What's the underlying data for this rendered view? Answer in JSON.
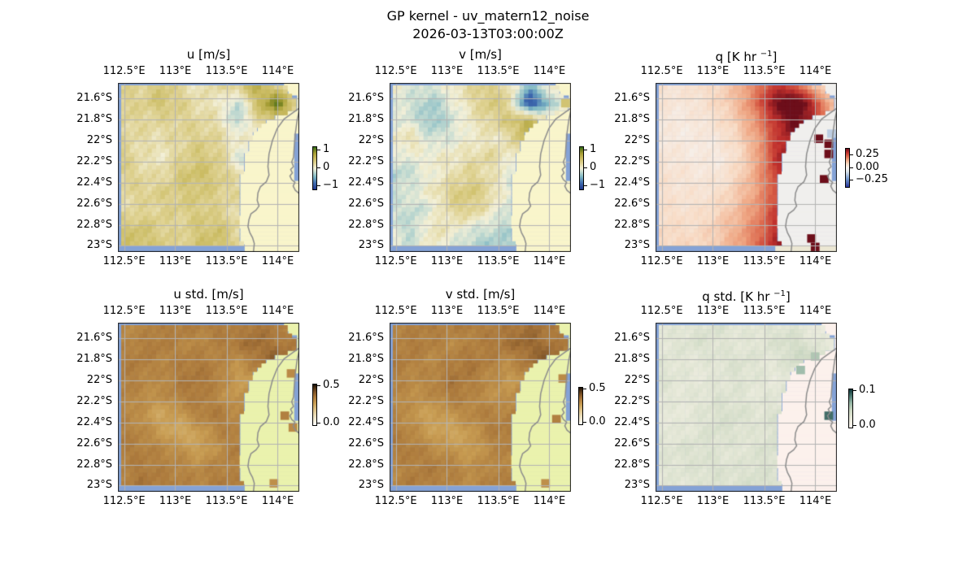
{
  "figure": {
    "suptitle_line1": "GP kernel - uv_matern12_noise",
    "suptitle_line2": "2026-03-13T03:00:00Z"
  },
  "colors": {
    "background": "#ffffff",
    "ocean": "#84a2d6",
    "coastline": "#8c8c8c",
    "gridline": "#b3b3b3",
    "frame": "#1a1a1a",
    "text": "#000000"
  },
  "colormaps": {
    "uv": [
      [
        0,
        "#20368c"
      ],
      [
        0.15,
        "#3f6cb0"
      ],
      [
        0.3,
        "#7fb8c4"
      ],
      [
        0.42,
        "#c8ddd2"
      ],
      [
        0.5,
        "#f3f0d8"
      ],
      [
        0.62,
        "#e0d394"
      ],
      [
        0.74,
        "#c9ba5e"
      ],
      [
        0.85,
        "#a89f36"
      ],
      [
        0.93,
        "#70801f"
      ],
      [
        1,
        "#2f6e1a"
      ]
    ],
    "q": [
      [
        0,
        "#27349a"
      ],
      [
        0.2,
        "#7095cc"
      ],
      [
        0.4,
        "#dce5ec"
      ],
      [
        0.5,
        "#f6f3f0"
      ],
      [
        0.6,
        "#f8dcc6"
      ],
      [
        0.7,
        "#f0a986"
      ],
      [
        0.8,
        "#dd6a4e"
      ],
      [
        0.9,
        "#bf2f2c"
      ],
      [
        1,
        "#6d0e1a"
      ]
    ],
    "std": [
      [
        0,
        "#fdfdfa"
      ],
      [
        0.2,
        "#eee3c4"
      ],
      [
        0.4,
        "#ddc083"
      ],
      [
        0.55,
        "#c89c52"
      ],
      [
        0.7,
        "#a9763a"
      ],
      [
        0.82,
        "#7d5226"
      ],
      [
        0.92,
        "#4a2f14"
      ],
      [
        1,
        "#150b04"
      ]
    ],
    "qstd": [
      [
        0,
        "#fdf5f1"
      ],
      [
        0.25,
        "#e7e9d9"
      ],
      [
        0.45,
        "#ccd8c2"
      ],
      [
        0.65,
        "#93b4a4"
      ],
      [
        0.82,
        "#4d7a72"
      ],
      [
        1,
        "#0e3438"
      ]
    ]
  },
  "axes": {
    "lon_labels": [
      {
        "text": "112.5°E",
        "f": 0.034
      },
      {
        "text": "113°E",
        "f": 0.316
      },
      {
        "text": "113.5°E",
        "f": 0.599
      },
      {
        "text": "114°E",
        "f": 0.881
      }
    ],
    "lat_labels": [
      {
        "text": "21.6°S",
        "f": 0.093
      },
      {
        "text": "21.8°S",
        "f": 0.217
      },
      {
        "text": "22°S",
        "f": 0.342
      },
      {
        "text": "22.2°S",
        "f": 0.466
      },
      {
        "text": "22.4°S",
        "f": 0.59
      },
      {
        "text": "22.6°S",
        "f": 0.714
      },
      {
        "text": "22.8°S",
        "f": 0.839
      },
      {
        "text": "23°S",
        "f": 0.963
      }
    ],
    "lon_range": [
      112.44,
      114.21
    ],
    "lat_range": [
      -23.06,
      -21.45
    ]
  },
  "coastline": {
    "main": [
      [
        1.0,
        0.15
      ],
      [
        0.96,
        0.18
      ],
      [
        0.915,
        0.215
      ],
      [
        0.878,
        0.27
      ],
      [
        0.852,
        0.34
      ],
      [
        0.833,
        0.42
      ],
      [
        0.827,
        0.495
      ],
      [
        0.833,
        0.545
      ],
      [
        0.818,
        0.585
      ],
      [
        0.785,
        0.615
      ],
      [
        0.772,
        0.65
      ],
      [
        0.768,
        0.695
      ],
      [
        0.778,
        0.728
      ],
      [
        0.762,
        0.752
      ],
      [
        0.733,
        0.775
      ],
      [
        0.722,
        0.81
      ],
      [
        0.717,
        0.85
      ],
      [
        0.727,
        0.885
      ],
      [
        0.742,
        0.915
      ],
      [
        0.752,
        0.95
      ],
      [
        0.747,
        1.0
      ]
    ],
    "gulf": [
      [
        1.0,
        0.16
      ],
      [
        0.988,
        0.22
      ],
      [
        0.978,
        0.3
      ],
      [
        0.972,
        0.38
      ],
      [
        0.968,
        0.44
      ],
      [
        0.958,
        0.468
      ],
      [
        0.968,
        0.495
      ],
      [
        0.952,
        0.512
      ],
      [
        0.962,
        0.532
      ],
      [
        0.948,
        0.55
      ],
      [
        0.958,
        0.572
      ],
      [
        0.976,
        0.588
      ],
      [
        0.966,
        0.61
      ],
      [
        0.978,
        0.635
      ],
      [
        1.0,
        0.655
      ]
    ]
  },
  "mask_boundary": [
    0.92,
    0.93,
    1.0,
    1.0,
    0.86,
    0.78,
    0.74,
    0.72,
    0.71,
    0.7,
    0.69,
    0.68,
    0.67,
    0.67,
    0.68,
    0.68,
    0.66,
    0.66,
    0.67,
    0.69,
    0.71
  ],
  "chart_data": [
    {
      "id": "u",
      "type": "heatmap",
      "title": "u [m/s]",
      "title_sup": "",
      "title_post": "",
      "cmap": "uv",
      "vmin": -1.4,
      "vmax": 1.4,
      "land_color": "#f9f5cb",
      "colorbar_ticks": [
        {
          "label": "1",
          "f": 0.07
        },
        {
          "label": "0",
          "f": 0.5
        },
        {
          "label": "−1",
          "f": 0.93
        }
      ],
      "values": [
        [
          0.35,
          0.3,
          0.5,
          0.3,
          0.1,
          0.3,
          0.45,
          0.8,
          0.3,
          0.2
        ],
        [
          0.4,
          0.35,
          0.55,
          0.4,
          0.2,
          0.1,
          -0.3,
          0.6,
          1.3,
          0.4
        ],
        [
          0.35,
          0.3,
          0.3,
          0.35,
          0.3,
          0.2,
          -0.35,
          0.3,
          0.5,
          0.2
        ],
        [
          0.3,
          0.25,
          0.2,
          0.3,
          0.4,
          0.3,
          0.1,
          0.15,
          0.2,
          0.1
        ],
        [
          0.45,
          0.2,
          0.1,
          0.3,
          0.5,
          0.4,
          -0.1,
          -0.45,
          0.1,
          0.1
        ],
        [
          0.4,
          0.3,
          0.2,
          0.5,
          0.6,
          0.45,
          0.2,
          -0.3,
          0.05,
          0.1
        ],
        [
          0.3,
          0.35,
          0.4,
          0.45,
          0.5,
          0.4,
          0.3,
          0.1,
          0.05,
          0.1
        ],
        [
          0.25,
          0.3,
          0.35,
          0.4,
          0.45,
          0.35,
          0.2,
          0.05,
          0.1,
          0.1
        ],
        [
          0.5,
          0.55,
          0.4,
          0.3,
          0.5,
          0.55,
          0.3,
          -0.2,
          0.1,
          0.1
        ],
        [
          0.55,
          0.6,
          0.45,
          0.35,
          0.55,
          0.6,
          0.35,
          -0.35,
          0.1,
          0.1
        ]
      ],
      "land_cells": []
    },
    {
      "id": "v",
      "type": "heatmap",
      "title": "v [m/s]",
      "title_sup": "",
      "title_post": "",
      "cmap": "uv",
      "vmin": -1.4,
      "vmax": 1.4,
      "land_color": "#f9f5cb",
      "colorbar_ticks": [
        {
          "label": "1",
          "f": 0.07
        },
        {
          "label": "0",
          "f": 0.5
        },
        {
          "label": "−1",
          "f": 0.93
        }
      ],
      "values": [
        [
          0.05,
          -0.1,
          -0.15,
          0.1,
          0.3,
          0.4,
          0.2,
          -0.5,
          0.1,
          0.3
        ],
        [
          -0.1,
          -0.2,
          -0.4,
          -0.1,
          0.2,
          0.5,
          0.3,
          -1.3,
          -0.6,
          0.2
        ],
        [
          -0.05,
          -0.15,
          -0.45,
          -0.2,
          0.1,
          0.3,
          0.5,
          0.8,
          0.3,
          0.1
        ],
        [
          0.1,
          0.2,
          -0.2,
          -0.1,
          0.05,
          0.1,
          0.2,
          0.9,
          0.2,
          0.05
        ],
        [
          -0.1,
          -0.05,
          0.05,
          0.1,
          0.2,
          0.3,
          0.1,
          -0.2,
          0.1,
          0.0
        ],
        [
          -0.35,
          -0.2,
          0.0,
          0.15,
          0.35,
          0.2,
          -0.1,
          -0.3,
          0.0,
          0.0
        ],
        [
          -0.2,
          -0.1,
          0.1,
          0.4,
          0.5,
          0.3,
          -0.1,
          -0.2,
          0.0,
          0.0
        ],
        [
          -0.15,
          -0.25,
          -0.1,
          0.3,
          0.4,
          0.1,
          -0.2,
          -0.3,
          0.0,
          0.0
        ],
        [
          -0.1,
          -0.3,
          0.2,
          0.1,
          -0.1,
          -0.2,
          -0.3,
          -0.35,
          0.0,
          0.0
        ],
        [
          -0.05,
          -0.2,
          0.1,
          -0.1,
          -0.3,
          -0.4,
          -0.35,
          -0.3,
          0.0,
          0.0
        ]
      ],
      "land_cells": [
        [
          0.97,
          0.12,
          0.55
        ]
      ]
    },
    {
      "id": "q",
      "type": "heatmap",
      "title": "q [K hr ",
      "title_sup": "−1",
      "title_post": "]",
      "cmap": "q",
      "vmin": -0.38,
      "vmax": 0.38,
      "land_color": "#f0efed",
      "corner_color": "#ebe7d3",
      "colorbar_ticks": [
        {
          "label": "0.25",
          "f": 0.17
        },
        {
          "label": "0.00",
          "f": 0.5
        },
        {
          "label": "−0.25",
          "f": 0.83
        }
      ],
      "values": [
        [
          0.06,
          0.05,
          0.06,
          0.08,
          0.12,
          0.2,
          0.28,
          0.25,
          0.1,
          0.05
        ],
        [
          0.05,
          0.04,
          0.05,
          0.08,
          0.12,
          0.22,
          0.38,
          0.45,
          0.3,
          0.1
        ],
        [
          0.04,
          0.03,
          0.04,
          0.06,
          0.1,
          0.18,
          0.3,
          0.4,
          0.3,
          0.1
        ],
        [
          0.04,
          0.03,
          0.03,
          0.04,
          0.08,
          0.15,
          0.28,
          0.35,
          0.45,
          0.2
        ],
        [
          0.05,
          0.04,
          0.03,
          0.03,
          0.06,
          0.14,
          0.3,
          0.38,
          0.3,
          0.1
        ],
        [
          0.06,
          0.05,
          0.04,
          0.04,
          0.08,
          0.15,
          0.28,
          0.32,
          0.2,
          0.0
        ],
        [
          0.06,
          0.05,
          0.05,
          0.06,
          0.1,
          0.16,
          0.25,
          0.3,
          0.1,
          0.0
        ],
        [
          0.07,
          0.06,
          0.06,
          0.08,
          0.12,
          0.18,
          0.28,
          0.35,
          0.1,
          0.0
        ],
        [
          0.08,
          0.07,
          0.07,
          0.1,
          0.14,
          0.2,
          0.3,
          0.42,
          0.1,
          0.0
        ],
        [
          0.08,
          0.08,
          0.08,
          0.1,
          0.15,
          0.22,
          0.32,
          0.45,
          0.1,
          0.0
        ]
      ],
      "land_cells": [
        [
          0.9,
          0.33,
          0.42
        ],
        [
          0.955,
          0.36,
          0.5
        ],
        [
          0.955,
          0.42,
          0.5
        ],
        [
          0.93,
          0.57,
          0.46
        ],
        [
          0.97,
          0.3,
          -0.12
        ],
        [
          0.86,
          0.92,
          0.45
        ],
        [
          0.88,
          0.97,
          0.42
        ]
      ]
    },
    {
      "id": "u_std",
      "type": "heatmap",
      "title": "u std. [m/s]",
      "title_sup": "",
      "title_post": "",
      "cmap": "std",
      "vmin": 0,
      "vmax": 0.5,
      "land_color": "#eaf2ad",
      "colorbar_ticks": [
        {
          "label": "0.5",
          "f": 0.04
        },
        {
          "label": "0.0",
          "f": 0.96
        }
      ],
      "values": [
        [
          0.32,
          0.31,
          0.33,
          0.34,
          0.33,
          0.34,
          0.32,
          0.35,
          0.33,
          0.32
        ],
        [
          0.31,
          0.33,
          0.34,
          0.32,
          0.31,
          0.33,
          0.35,
          0.37,
          0.34,
          0.33
        ],
        [
          0.33,
          0.34,
          0.32,
          0.33,
          0.34,
          0.32,
          0.3,
          0.34,
          0.4,
          0.34
        ],
        [
          0.34,
          0.32,
          0.31,
          0.34,
          0.35,
          0.33,
          0.27,
          0.3,
          0.42,
          0.33
        ],
        [
          0.33,
          0.31,
          0.3,
          0.33,
          0.34,
          0.31,
          0.28,
          0.33,
          0.38,
          0.32
        ],
        [
          0.32,
          0.3,
          0.25,
          0.28,
          0.33,
          0.34,
          0.31,
          0.34,
          0.4,
          0.33
        ],
        [
          0.33,
          0.32,
          0.28,
          0.24,
          0.27,
          0.32,
          0.33,
          0.42,
          0.38,
          0.32
        ],
        [
          0.34,
          0.33,
          0.32,
          0.3,
          0.26,
          0.3,
          0.34,
          0.38,
          0.36,
          0.33
        ],
        [
          0.32,
          0.34,
          0.33,
          0.32,
          0.31,
          0.33,
          0.32,
          0.36,
          0.34,
          0.32
        ],
        [
          0.33,
          0.35,
          0.34,
          0.33,
          0.32,
          0.34,
          0.33,
          0.35,
          0.33,
          0.32
        ]
      ],
      "land_cells": [
        [
          0.9,
          0.08,
          0.34
        ],
        [
          0.955,
          0.3,
          0.31
        ],
        [
          0.92,
          0.55,
          0.33
        ],
        [
          0.965,
          0.62,
          0.31
        ],
        [
          0.86,
          0.95,
          0.3
        ]
      ]
    },
    {
      "id": "v_std",
      "type": "heatmap",
      "title": "v std. [m/s]",
      "title_sup": "",
      "title_post": "",
      "cmap": "std",
      "vmin": 0,
      "vmax": 0.5,
      "land_color": "#eaf2ad",
      "colorbar_ticks": [
        {
          "label": "0.5",
          "f": 0.04
        },
        {
          "label": "0.0",
          "f": 0.96
        }
      ],
      "values": [
        [
          0.33,
          0.32,
          0.34,
          0.33,
          0.34,
          0.33,
          0.34,
          0.36,
          0.34,
          0.33
        ],
        [
          0.32,
          0.34,
          0.33,
          0.31,
          0.32,
          0.34,
          0.36,
          0.38,
          0.35,
          0.33
        ],
        [
          0.34,
          0.33,
          0.31,
          0.33,
          0.35,
          0.33,
          0.31,
          0.35,
          0.41,
          0.34
        ],
        [
          0.33,
          0.31,
          0.32,
          0.35,
          0.34,
          0.31,
          0.28,
          0.31,
          0.4,
          0.33
        ],
        [
          0.32,
          0.3,
          0.31,
          0.34,
          0.32,
          0.3,
          0.29,
          0.34,
          0.37,
          0.32
        ],
        [
          0.33,
          0.29,
          0.26,
          0.29,
          0.32,
          0.33,
          0.32,
          0.35,
          0.39,
          0.33
        ],
        [
          0.34,
          0.31,
          0.27,
          0.25,
          0.28,
          0.33,
          0.34,
          0.41,
          0.37,
          0.32
        ],
        [
          0.33,
          0.34,
          0.31,
          0.29,
          0.27,
          0.31,
          0.33,
          0.37,
          0.35,
          0.33
        ],
        [
          0.31,
          0.33,
          0.34,
          0.33,
          0.3,
          0.32,
          0.31,
          0.35,
          0.33,
          0.32
        ],
        [
          0.32,
          0.34,
          0.33,
          0.32,
          0.31,
          0.33,
          0.34,
          0.36,
          0.33,
          0.32
        ]
      ],
      "land_cells": [
        [
          0.9,
          0.08,
          0.34
        ],
        [
          0.955,
          0.33,
          0.31
        ],
        [
          0.92,
          0.57,
          0.33
        ],
        [
          0.86,
          0.95,
          0.3
        ]
      ]
    },
    {
      "id": "q_std",
      "type": "heatmap",
      "title": "q std. [K hr ",
      "title_sup": "−1",
      "title_post": "]",
      "cmap": "qstd",
      "vmin": 0,
      "vmax": 0.1,
      "land_color": "#fcf1ec",
      "colorbar_ticks": [
        {
          "label": "0.1",
          "f": 0.05
        },
        {
          "label": "0.0",
          "f": 0.95
        }
      ],
      "values": [
        [
          0.028,
          0.026,
          0.03,
          0.034,
          0.03,
          0.026,
          0.03,
          0.028,
          0.022,
          0.02
        ],
        [
          0.026,
          0.03,
          0.035,
          0.031,
          0.026,
          0.029,
          0.034,
          0.04,
          0.028,
          0.022
        ],
        [
          0.03,
          0.028,
          0.026,
          0.03,
          0.034,
          0.03,
          0.026,
          0.04,
          0.046,
          0.026
        ],
        [
          0.032,
          0.028,
          0.025,
          0.027,
          0.032,
          0.028,
          0.024,
          0.03,
          0.044,
          0.024
        ],
        [
          0.028,
          0.026,
          0.028,
          0.032,
          0.03,
          0.026,
          0.028,
          0.034,
          0.038,
          0.022
        ],
        [
          0.026,
          0.024,
          0.028,
          0.034,
          0.036,
          0.03,
          0.032,
          0.038,
          0.04,
          0.022
        ],
        [
          0.028,
          0.026,
          0.03,
          0.036,
          0.032,
          0.028,
          0.034,
          0.042,
          0.036,
          0.022
        ],
        [
          0.03,
          0.032,
          0.034,
          0.03,
          0.028,
          0.032,
          0.036,
          0.04,
          0.03,
          0.022
        ],
        [
          0.028,
          0.03,
          0.032,
          0.034,
          0.03,
          0.034,
          0.032,
          0.038,
          0.028,
          0.022
        ],
        [
          0.026,
          0.028,
          0.03,
          0.032,
          0.034,
          0.036,
          0.034,
          0.036,
          0.026,
          0.022
        ]
      ],
      "land_cells": [
        [
          0.955,
          0.55,
          0.085
        ],
        [
          0.8,
          0.28,
          0.06
        ],
        [
          0.88,
          0.2,
          0.055
        ]
      ]
    }
  ]
}
